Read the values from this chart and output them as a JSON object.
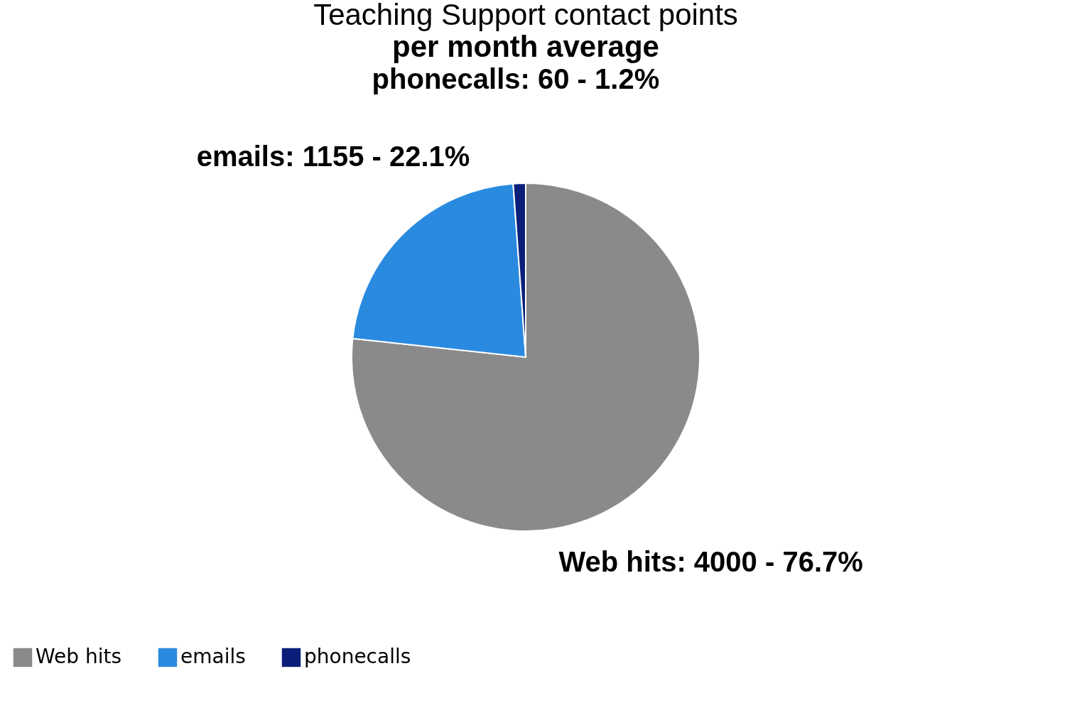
{
  "chart_data": {
    "type": "pie",
    "title": "Teaching Support contact points",
    "subtitle": "per month average",
    "categories": [
      "Web hits",
      "emails",
      "phonecalls"
    ],
    "values": [
      4000,
      1155,
      60
    ],
    "colors": [
      "#8a8a8a",
      "#2a8ae0",
      "#0a1f7a"
    ],
    "value_labels": [
      "Web hits: 4000 - 76.7%",
      "emails: 1155 - 22.1%",
      "phonecalls: 60 - 1.2%"
    ],
    "legend": "bottom"
  }
}
